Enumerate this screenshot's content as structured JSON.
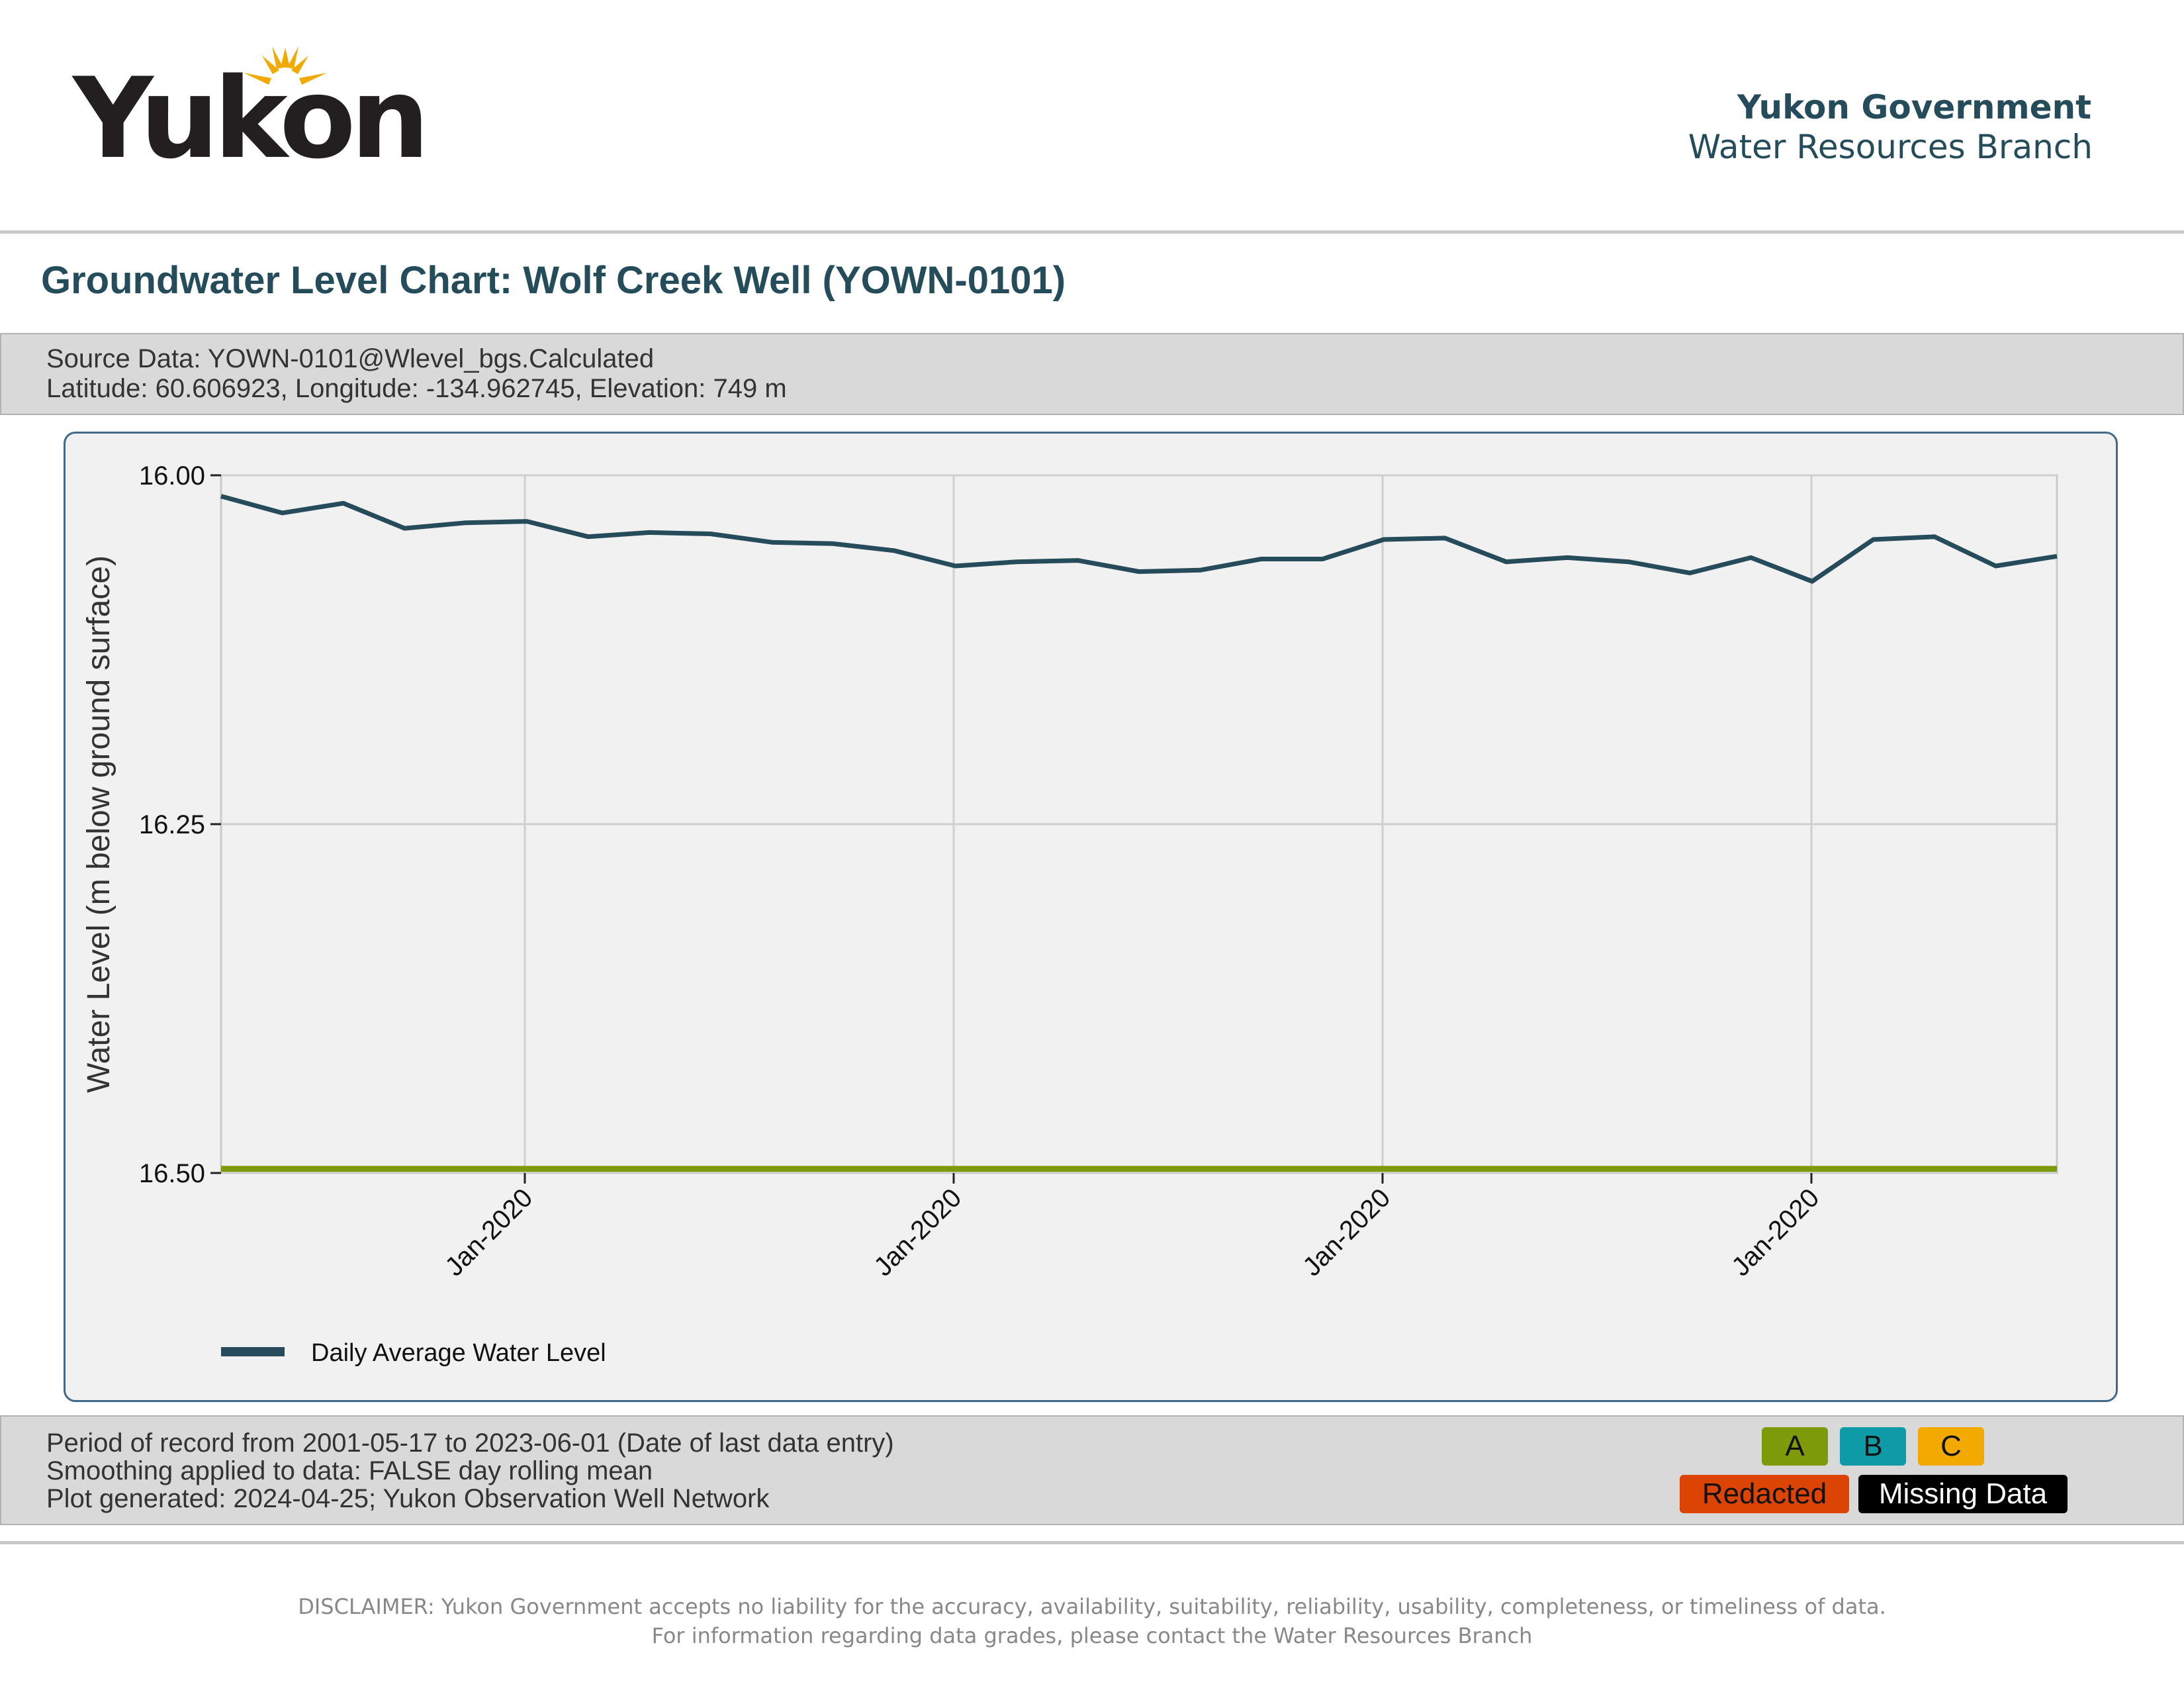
{
  "header": {
    "logo_text": "Yukon",
    "org_name": "Yukon Government",
    "branch": "Water Resources Branch"
  },
  "title": "Groundwater Level Chart: Wolf Creek Well (YOWN-0101)",
  "source_info": {
    "source": "Source Data: YOWN-0101@Wlevel_bgs.Calculated",
    "location": "Latitude: 60.606923, Longitude: -134.962745, Elevation: 749 m"
  },
  "chart_data": {
    "type": "line",
    "title": "",
    "xlabel": "",
    "ylabel": "Water Level (m below ground surface)",
    "y_reversed": true,
    "ylim": [
      16.0,
      16.5
    ],
    "yticks": [
      "16.00",
      "16.25",
      "16.50"
    ],
    "xticks": [
      "Jan-2020",
      "Jan-2020",
      "Jan-2020",
      "Jan-2020"
    ],
    "grid": true,
    "legend_position": "bottom-left",
    "series": [
      {
        "name": "Daily Average Water Level",
        "color": "#264b5a",
        "values": [
          16.015,
          16.027,
          16.02,
          16.038,
          16.034,
          16.033,
          16.044,
          16.041,
          16.042,
          16.048,
          16.049,
          16.054,
          16.065,
          16.062,
          16.061,
          16.069,
          16.068,
          16.06,
          16.06,
          16.046,
          16.045,
          16.062,
          16.059,
          16.062,
          16.07,
          16.059,
          16.076,
          16.046,
          16.044,
          16.065,
          16.058
        ]
      },
      {
        "name": "",
        "color": "#7d9a0a",
        "values": [
          16.497,
          16.497
        ]
      }
    ]
  },
  "footer_info": {
    "period": "Period of record from 2001-05-17 to 2023-06-01 (Date of last data entry)",
    "smoothing": "Smoothing applied to data: FALSE day rolling mean",
    "generated": "Plot generated: 2024-04-25; Yukon Observation Well Network"
  },
  "grades": {
    "a": {
      "label": "A",
      "color": "#7d9a0a"
    },
    "b": {
      "label": "B",
      "color": "#0f9aa8"
    },
    "c": {
      "label": "C",
      "color": "#f2a900"
    },
    "redacted": {
      "label": "Redacted",
      "color": "#dc4405"
    },
    "missing": {
      "label": "Missing Data",
      "color": "#000000"
    }
  },
  "disclaimer": {
    "line1": "DISCLAIMER: Yukon Government accepts no liability for the accuracy, availability, suitability, reliability, usability, completeness, or timeliness of data.",
    "line2": "For information regarding data grades, please contact the Water Resources Branch"
  }
}
